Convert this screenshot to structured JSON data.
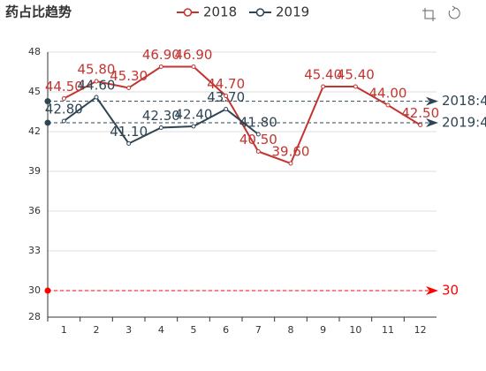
{
  "chart_data": {
    "type": "line",
    "title": "药占比趋势",
    "categories": [
      "1",
      "2",
      "3",
      "4",
      "5",
      "6",
      "7",
      "8",
      "9",
      "10",
      "11",
      "12"
    ],
    "series": [
      {
        "name": "2018",
        "color": "#c23531",
        "values": [
          44.5,
          45.8,
          45.3,
          46.9,
          46.9,
          44.7,
          40.5,
          39.6,
          45.4,
          45.4,
          44.0,
          42.5
        ],
        "value_labels": [
          "44.50",
          "45.80",
          "45.30",
          "46.90",
          "46.90",
          "44.70",
          "40.50",
          "39.60",
          "45.40",
          "45.40",
          "44.00",
          "42.50"
        ]
      },
      {
        "name": "2019",
        "color": "#2f4554",
        "values": [
          42.8,
          44.6,
          41.1,
          42.3,
          42.4,
          43.7,
          41.8,
          null,
          null,
          null,
          null,
          null
        ],
        "value_labels": [
          "42.80",
          "44.60",
          "41.10",
          "42.30",
          "42.40",
          "43.70",
          "41.80",
          null,
          null,
          null,
          null,
          null
        ]
      }
    ],
    "mark_lines": [
      {
        "value": 44.29,
        "label": "2018:4",
        "color": "#2f4554"
      },
      {
        "value": 42.67,
        "label": "2019:4",
        "color": "#2f4554"
      },
      {
        "value": 30,
        "label": "30",
        "color": "#ff0000"
      }
    ],
    "ylim": [
      28,
      48
    ],
    "yticks": [
      28,
      30,
      33,
      36,
      39,
      42,
      45,
      48
    ],
    "grid": true
  }
}
